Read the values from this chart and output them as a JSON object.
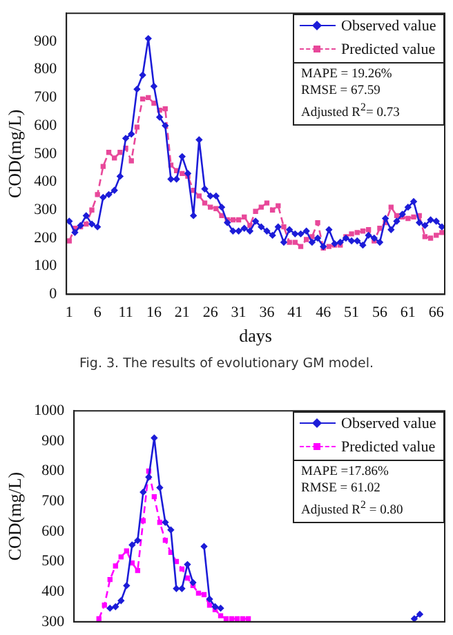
{
  "chart_data": [
    {
      "type": "line",
      "title": "Fig. 3. The results of evolutionary GM model.",
      "xlabel": "days",
      "ylabel": "COD(mg/L)",
      "x": [
        1,
        2,
        3,
        4,
        5,
        6,
        7,
        8,
        9,
        10,
        11,
        12,
        13,
        14,
        15,
        16,
        17,
        18,
        19,
        20,
        21,
        22,
        23,
        24,
        25,
        26,
        27,
        28,
        29,
        30,
        31,
        32,
        33,
        34,
        35,
        36,
        37,
        38,
        39,
        40,
        41,
        42,
        43,
        44,
        45,
        46,
        47,
        48,
        49,
        50,
        51,
        52,
        53,
        54,
        55,
        56,
        57,
        58,
        59,
        60,
        61,
        62,
        63,
        64,
        65,
        66,
        67
      ],
      "xlim": [
        0.5,
        67.5
      ],
      "xticks": [
        1,
        6,
        11,
        16,
        21,
        26,
        31,
        36,
        41,
        46,
        51,
        56,
        61,
        66
      ],
      "ylim": [
        0,
        1000
      ],
      "yticks": [
        0,
        100,
        200,
        300,
        400,
        500,
        600,
        700,
        800,
        900
      ],
      "grid": false,
      "legend": "top right",
      "series": [
        {
          "name": "Observed value",
          "color": "#1c1cd8",
          "marker": "diamond",
          "line_style": "solid",
          "values": [
            260,
            220,
            245,
            280,
            250,
            240,
            345,
            355,
            370,
            420,
            555,
            570,
            730,
            780,
            910,
            740,
            630,
            600,
            410,
            410,
            490,
            430,
            280,
            550,
            375,
            350,
            350,
            310,
            255,
            225,
            225,
            235,
            225,
            260,
            240,
            225,
            210,
            240,
            185,
            230,
            215,
            215,
            225,
            185,
            200,
            170,
            230,
            180,
            185,
            200,
            190,
            190,
            175,
            210,
            200,
            185,
            270,
            230,
            260,
            285,
            310,
            330,
            255,
            245,
            265,
            260,
            240
          ]
        },
        {
          "name": "Predicted value",
          "color": "#e8489a",
          "marker": "square",
          "line_style": "dashed",
          "values": [
            190,
            235,
            240,
            250,
            300,
            355,
            455,
            505,
            485,
            505,
            520,
            475,
            595,
            695,
            700,
            680,
            655,
            660,
            460,
            440,
            430,
            420,
            370,
            350,
            325,
            310,
            305,
            280,
            265,
            265,
            265,
            275,
            245,
            295,
            310,
            325,
            300,
            315,
            240,
            185,
            185,
            170,
            195,
            205,
            255,
            165,
            170,
            175,
            175,
            205,
            215,
            220,
            225,
            230,
            190,
            235,
            255,
            310,
            280,
            275,
            270,
            275,
            280,
            205,
            200,
            210,
            220
          ]
        }
      ],
      "annotations": [
        "MAPE = 19.26%",
        "RMSE = 67.59",
        "Adjusted R$^{2}$= 0.73"
      ]
    },
    {
      "type": "line",
      "ylabel": "COD(mg/L)",
      "categories": [
        null,
        null,
        null,
        null,
        null,
        null,
        null,
        null,
        null,
        null,
        null,
        null,
        null,
        null,
        null,
        null,
        null,
        null,
        null,
        null,
        null,
        null,
        null,
        null,
        null,
        null,
        null,
        null,
        null,
        null,
        null,
        null,
        null,
        null,
        null,
        null,
        null,
        null,
        null,
        null,
        null,
        null,
        null,
        null,
        null,
        null,
        null,
        null,
        null,
        null,
        null,
        null,
        null,
        null,
        null,
        null,
        null,
        null,
        null,
        null,
        null,
        null,
        null,
        null,
        null,
        null,
        null
      ],
      "ylim": [
        300,
        1000
      ],
      "yticks": [
        300,
        400,
        500,
        600,
        700,
        800,
        900,
        1000
      ],
      "tick_labels": "y",
      "grid": false,
      "legend": "top right",
      "series": [
        {
          "name": "Observed value",
          "color": "#1c1cd8",
          "marker": "diamond",
          "line_style": "solid",
          "values": [
            null,
            null,
            null,
            null,
            null,
            null,
            345,
            350,
            370,
            420,
            555,
            570,
            730,
            780,
            910,
            745,
            630,
            605,
            410,
            410,
            490,
            430,
            null,
            550,
            375,
            350,
            345,
            null,
            null,
            null,
            null,
            null,
            null,
            null,
            null,
            null,
            null,
            null,
            null,
            null,
            null,
            null,
            null,
            null,
            null,
            null,
            null,
            null,
            null,
            null,
            null,
            null,
            null,
            null,
            null,
            null,
            null,
            null,
            null,
            null,
            null,
            310,
            325,
            null,
            null,
            null,
            null
          ]
        },
        {
          "name": "Predicted value",
          "color": "#ff00ff",
          "marker": "square",
          "line_style": "dashed",
          "values": [
            null,
            null,
            null,
            null,
            310,
            355,
            440,
            485,
            515,
            535,
            495,
            470,
            635,
            800,
            715,
            630,
            570,
            530,
            500,
            475,
            445,
            420,
            395,
            390,
            355,
            340,
            320,
            310,
            310,
            310,
            310,
            310,
            null,
            null,
            null,
            null,
            null,
            null,
            null,
            null,
            null,
            null,
            null,
            null,
            null,
            null,
            null,
            null,
            null,
            null,
            null,
            null,
            null,
            null,
            null,
            null,
            null,
            null,
            null,
            null,
            null,
            null,
            null,
            null,
            null,
            null,
            null
          ]
        }
      ],
      "annotations": [
        "MAPE =17.86%",
        "RMSE = 61.02",
        "Adjusted R$^{2}$ = 0.80"
      ]
    }
  ]
}
